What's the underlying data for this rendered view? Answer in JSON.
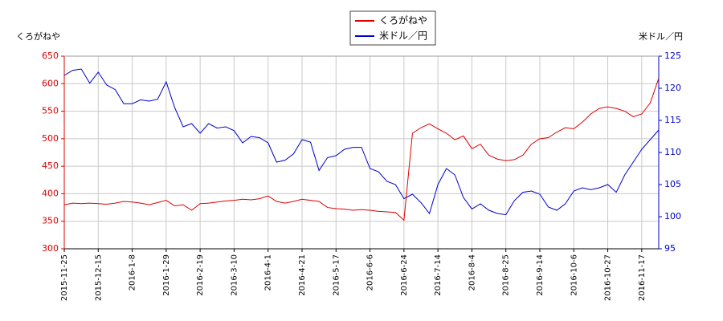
{
  "chart_data": {
    "type": "line",
    "y_label": "くろがねや",
    "y2_label": "米ドル／円",
    "categories": [
      "2015-11-25",
      null,
      null,
      null,
      "2015-12-15",
      null,
      null,
      null,
      "2016-1-8",
      null,
      null,
      null,
      "2016-1-29",
      null,
      null,
      null,
      "2016-2-19",
      null,
      null,
      null,
      "2016-3-10",
      null,
      null,
      null,
      "2016-4-1",
      null,
      null,
      null,
      "2016-4-21",
      null,
      null,
      null,
      "2016-5-17",
      null,
      null,
      null,
      "2016-6-6",
      null,
      null,
      null,
      "2016-6-24",
      null,
      null,
      null,
      "2016-7-14",
      null,
      null,
      null,
      "2016-8-4",
      null,
      null,
      null,
      "2016-8-25",
      null,
      null,
      null,
      "2016-9-14",
      null,
      null,
      null,
      "2016-10-6",
      null,
      null,
      null,
      "2016-10-27",
      null,
      null,
      null,
      "2016-11-17",
      null,
      null
    ],
    "series": [
      {
        "name": "くろがねや",
        "color": "#dd0000",
        "values": [
          380,
          383,
          382,
          383,
          382,
          381,
          383,
          386,
          385,
          383,
          380,
          384,
          388,
          378,
          380,
          370,
          382,
          383,
          385,
          387,
          388,
          390,
          389,
          391,
          396,
          386,
          383,
          386,
          390,
          388,
          386,
          375,
          373,
          372,
          370,
          371,
          370,
          368,
          367,
          366,
          352,
          510,
          520,
          527,
          518,
          510,
          498,
          505,
          482,
          490,
          470,
          463,
          460,
          462,
          470,
          490,
          500,
          502,
          512,
          520,
          518,
          530,
          545,
          555,
          558,
          555,
          550,
          540,
          545,
          565,
          610
        ]
      },
      {
        "name": "米ドル／円",
        "color": "#0000cc",
        "axis": "y2",
        "values": [
          122,
          122.8,
          123,
          120.8,
          122.5,
          120.5,
          119.8,
          117.6,
          117.6,
          118.2,
          118,
          118.3,
          121,
          117,
          114,
          114.5,
          113,
          114.5,
          113.8,
          114,
          113.4,
          111.5,
          112.5,
          112.3,
          111.5,
          108.5,
          108.8,
          109.8,
          112,
          111.6,
          107.2,
          109.2,
          109.5,
          110.5,
          110.8,
          110.8,
          107.5,
          107,
          105.5,
          105,
          102.8,
          103.5,
          102.2,
          100.5,
          105,
          107.5,
          106.5,
          103,
          101.2,
          102,
          101,
          100.5,
          100.3,
          102.5,
          103.8,
          104,
          103.5,
          101.5,
          101,
          102,
          104,
          104.5,
          104.2,
          104.5,
          105,
          103.8,
          106.5,
          108.5,
          110.5,
          112,
          113.5
        ]
      }
    ],
    "ylim": [
      300,
      650
    ],
    "yticks": [
      300,
      350,
      400,
      450,
      500,
      550,
      600,
      650
    ],
    "y2lim": [
      95,
      125
    ],
    "y2ticks": [
      95,
      100,
      105,
      110,
      115,
      120,
      125
    ],
    "grid": true,
    "legend": "top"
  }
}
